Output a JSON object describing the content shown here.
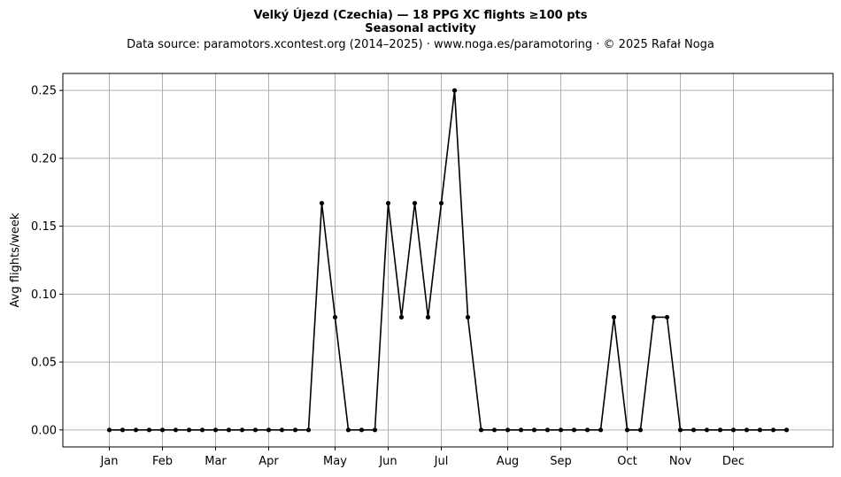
{
  "title_line1": "Velký Újezd (Czechia)  —  18 PPG XC flights ≥100 pts",
  "title_line2": "Seasonal activity",
  "subtitle": "Data source: paramotors.xcontest.org (2014–2025)  ·  www.noga.es/paramotoring  ·  © 2025 Rafał Noga",
  "chart_data": {
    "type": "line",
    "ylabel": "Avg flights/week",
    "xlabel": "",
    "grid": true,
    "ylim": [
      -0.0125,
      0.2625
    ],
    "xlim": [
      -2.5,
      55.5
    ],
    "x_ticks": [
      {
        "label": "Jan",
        "x": 1
      },
      {
        "label": "Feb",
        "x": 5
      },
      {
        "label": "Mar",
        "x": 9
      },
      {
        "label": "Apr",
        "x": 13
      },
      {
        "label": "May",
        "x": 18
      },
      {
        "label": "Jun",
        "x": 22
      },
      {
        "label": "Jul",
        "x": 26
      },
      {
        "label": "Aug",
        "x": 31
      },
      {
        "label": "Sep",
        "x": 35
      },
      {
        "label": "Oct",
        "x": 40
      },
      {
        "label": "Nov",
        "x": 44
      },
      {
        "label": "Dec",
        "x": 48
      }
    ],
    "y_ticks": [
      0.0,
      0.05,
      0.1,
      0.15,
      0.2,
      0.25
    ],
    "y_tick_labels": [
      "0.00",
      "0.05",
      "0.10",
      "0.15",
      "0.20",
      "0.25"
    ],
    "series": [
      {
        "x": [
          1,
          2,
          3,
          4,
          5,
          6,
          7,
          8,
          9,
          10,
          11,
          12,
          13,
          14,
          15,
          16,
          17,
          18,
          19,
          20,
          21,
          22,
          23,
          24,
          25,
          26,
          27,
          28,
          29,
          30,
          31,
          32,
          33,
          34,
          35,
          36,
          37,
          38,
          39,
          40,
          41,
          42,
          43,
          44,
          45,
          46,
          47,
          48,
          49,
          50,
          51,
          52
        ],
        "y": [
          0,
          0,
          0,
          0,
          0,
          0,
          0,
          0,
          0,
          0,
          0,
          0,
          0,
          0,
          0,
          0,
          0.167,
          0.083,
          0,
          0,
          0,
          0.167,
          0.083,
          0.167,
          0.083,
          0.167,
          0.25,
          0.083,
          0,
          0,
          0,
          0,
          0,
          0,
          0,
          0,
          0,
          0,
          0.083,
          0,
          0,
          0.083,
          0.083,
          0,
          0,
          0,
          0,
          0,
          0,
          0,
          0,
          0
        ]
      }
    ],
    "line_color": "#000000",
    "grid_color": "#b0b0b0"
  }
}
